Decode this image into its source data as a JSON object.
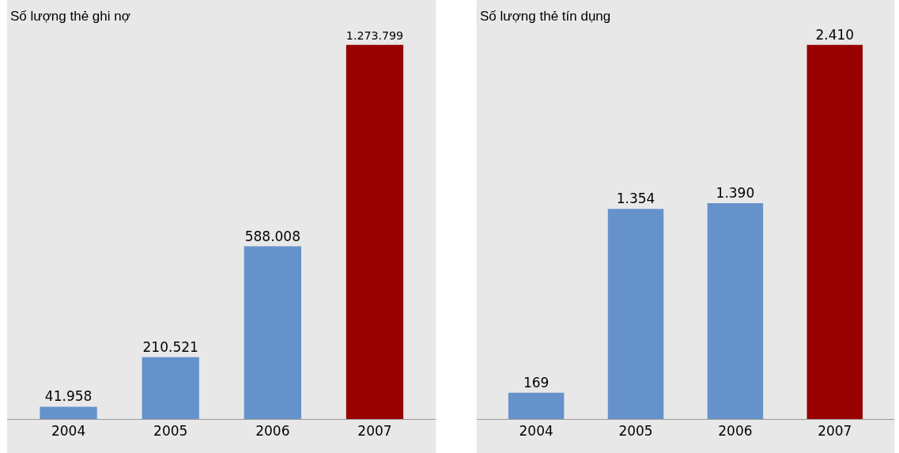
{
  "chart_data": [
    {
      "type": "bar",
      "title": "Số lượng thẻ ghi nợ",
      "categories": [
        "2004",
        "2005",
        "2006",
        "2007"
      ],
      "values": [
        41958,
        210521,
        588008,
        1273799
      ],
      "colors": [
        "#6692cc",
        "#6692cc",
        "#6692cc",
        "#990000"
      ],
      "value_labels": [
        "41.958",
        "210.521",
        "588.008",
        "1.273.799"
      ]
    },
    {
      "type": "bar",
      "title": "Số lượng thẻ tín dụng",
      "categories": [
        "2004",
        "2005",
        "2006",
        "2007"
      ],
      "values": [
        169,
        1354,
        1390,
        2410
      ],
      "colors": [
        "#6692cc",
        "#6692cc",
        "#6692cc",
        "#990000"
      ],
      "value_labels": [
        "169",
        "1.354",
        "1.390",
        "2.410"
      ]
    }
  ]
}
